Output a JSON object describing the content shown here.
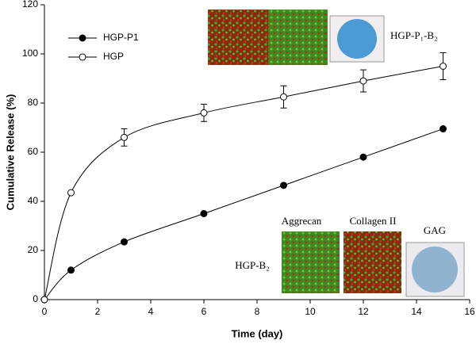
{
  "chart_data": {
    "type": "line",
    "x_label": "Time (day)",
    "y_label": "Cumulative Release (%)",
    "x": [
      0,
      1,
      3,
      6,
      9,
      12,
      15
    ],
    "series": [
      {
        "name": "HGP-P1",
        "color": "#000000",
        "marker": "filled",
        "values": [
          0,
          12,
          23.5,
          35,
          46.5,
          58,
          69.5
        ]
      },
      {
        "name": "HGP",
        "color": "#000000",
        "marker": "open",
        "values": [
          0,
          43.5,
          66,
          76,
          82.5,
          89,
          95
        ],
        "errors": [
          0,
          0,
          3.5,
          3.5,
          4.5,
          4.5,
          5.5
        ]
      }
    ],
    "xlim": [
      0,
      16
    ],
    "xticks": [
      0,
      2,
      4,
      6,
      8,
      10,
      12,
      14,
      16
    ],
    "ylim": [
      0,
      120
    ],
    "yticks": [
      0,
      20,
      40,
      60,
      80,
      100,
      120
    ],
    "legend": "upper-left",
    "annotations": [
      "HGP-P₁-B₂",
      "Aggrecan",
      "Collagen II",
      "GAG",
      "HGP-B₂"
    ]
  }
}
